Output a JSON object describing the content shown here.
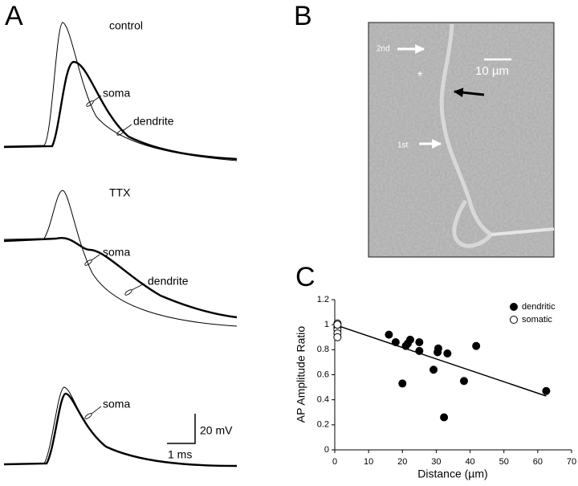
{
  "panel_labels": [
    "A",
    "B",
    "C"
  ],
  "panel_a": {
    "traces": [
      {
        "label": "control",
        "annotations": [
          "soma",
          "dendrite"
        ]
      },
      {
        "label": "TTX",
        "annotations": [
          "soma",
          "dendrite"
        ]
      },
      {
        "annotations": [
          "soma"
        ]
      }
    ],
    "scale_bar": {
      "y_label": "20 mV",
      "x_label": "1 ms"
    }
  },
  "panel_b": {
    "labels": [
      "2nd",
      "1st"
    ],
    "scale_bar": "10 µm",
    "asterisk": "*"
  },
  "chart_data": {
    "type": "scatter",
    "xlabel": "Distance (µm)",
    "ylabel": "AP Amplitude Ratio",
    "xlim": [
      0,
      70
    ],
    "ylim": [
      0,
      1.2
    ],
    "xticks": [
      0,
      10,
      20,
      30,
      40,
      50,
      60,
      70
    ],
    "yticks": [
      0,
      0.2,
      0.4,
      0.6,
      0.8,
      1,
      1.2
    ],
    "legend": "upper right",
    "series": [
      {
        "name": "dendritic",
        "color": "#000000",
        "filled": true,
        "x": [
          16,
          18,
          21.6,
          22.3,
          25,
          25,
          21,
          30.6,
          30.4,
          33.3,
          29.2,
          20,
          38.2,
          41.8,
          62.5,
          32.3
        ],
        "values": [
          0.92,
          0.86,
          0.85,
          0.88,
          0.86,
          0.79,
          0.83,
          0.81,
          0.78,
          0.77,
          0.64,
          0.53,
          0.55,
          0.83,
          0.47,
          0.26
        ]
      },
      {
        "name": "somatic",
        "color": "#000000",
        "filled": false,
        "x": [
          0.8,
          0.8,
          0.8,
          0.8,
          0.8,
          0.8
        ],
        "values": [
          1.01,
          0.98,
          0.96,
          0.93,
          0.9,
          1.0
        ]
      }
    ],
    "trend_line": {
      "x": [
        0,
        62.5
      ],
      "values": [
        1.0,
        0.43
      ]
    }
  }
}
